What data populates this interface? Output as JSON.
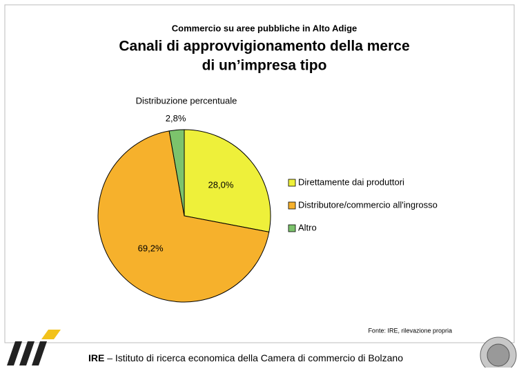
{
  "chart_data": {
    "type": "pie",
    "supertitle": "Commercio su aree pubbliche in Alto Adige",
    "title": "Canali di approvvigionamento della merce",
    "title_line2": "di un’impresa tipo",
    "subtitle": "Distribuzione percentuale",
    "categories": [
      "Direttamente dai produttori",
      "Distributore/commercio all'ingrosso",
      "Altro"
    ],
    "values": [
      28.0,
      69.2,
      2.8
    ],
    "value_labels": [
      "28,0%",
      "69,2%",
      "2,8%"
    ],
    "colors": [
      "#eef03a",
      "#f6b12c",
      "#7cc36c"
    ],
    "legend": "right"
  },
  "source": "Fonte: IRE, rilevazione propria",
  "footer": {
    "org": "IRE",
    "text": " – Istituto di ricerca economica della Camera di commercio di Bolzano"
  }
}
